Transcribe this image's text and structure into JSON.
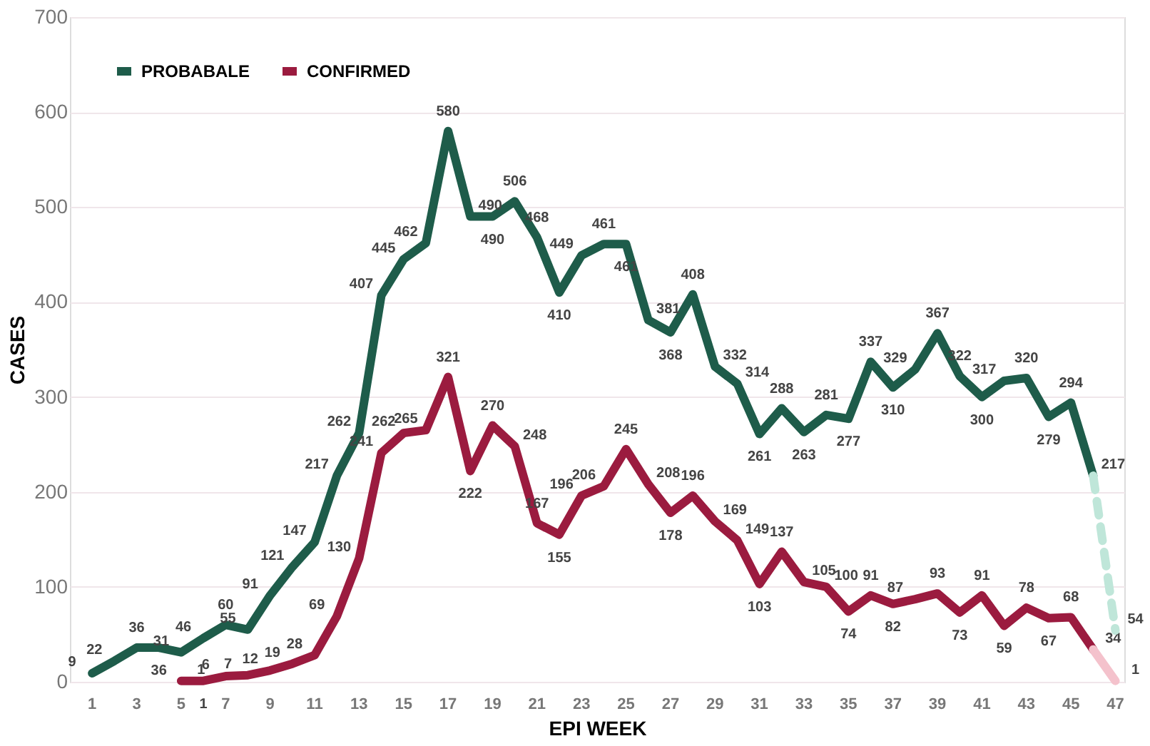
{
  "chart_data": {
    "type": "line",
    "xlabel": "EPI WEEK",
    "ylabel": "CASES",
    "xlim": [
      0,
      47.4
    ],
    "xticks": [
      1,
      3,
      5,
      7,
      9,
      11,
      13,
      15,
      17,
      19,
      21,
      23,
      25,
      27,
      29,
      31,
      33,
      35,
      37,
      39,
      41,
      43,
      45,
      47
    ],
    "ylim": [
      0,
      700
    ],
    "yticks": [
      0,
      100,
      200,
      300,
      400,
      500,
      600,
      700
    ],
    "grid": "y",
    "legend": "top left",
    "marker": "none",
    "data_labels": true,
    "series": [
      {
        "name": "PROBABALE",
        "color": "#1e5c4a",
        "line_style": "solid",
        "x": [
          1,
          2,
          3,
          4,
          5,
          6,
          7,
          8,
          9,
          10,
          11,
          12,
          13,
          14,
          15,
          16,
          17,
          18,
          19,
          20,
          21,
          22,
          23,
          24,
          25,
          26,
          27,
          28,
          29,
          30,
          31,
          32,
          33,
          34,
          35,
          36,
          37,
          38,
          39,
          40,
          41,
          42,
          43,
          44,
          45,
          46
        ],
        "values": [
          9,
          22,
          36,
          36,
          31,
          46,
          60,
          55,
          91,
          121,
          147,
          217,
          262,
          407,
          445,
          462,
          580,
          490,
          490,
          506,
          468,
          410,
          449,
          461,
          461,
          381,
          368,
          408,
          332,
          314,
          261,
          288,
          263,
          281,
          277,
          337,
          310,
          329,
          367,
          322,
          300,
          317,
          320,
          279,
          294,
          217
        ]
      },
      {
        "name": "CONFIRMED",
        "color": "#9b1b3f",
        "line_style": "solid",
        "x": [
          5,
          6,
          7,
          8,
          9,
          10,
          11,
          12,
          13,
          14,
          15,
          16,
          17,
          18,
          19,
          20,
          21,
          22,
          23,
          24,
          25,
          26,
          27,
          28,
          29,
          30,
          31,
          32,
          33,
          34,
          35,
          36,
          37,
          38,
          39,
          40,
          41,
          42,
          43,
          44,
          45,
          46
        ],
        "values": [
          1,
          1,
          6,
          7,
          12,
          19,
          28,
          69,
          130,
          241,
          262,
          265,
          321,
          222,
          270,
          248,
          167,
          155,
          196,
          206,
          245,
          208,
          178,
          196,
          169,
          149,
          103,
          137,
          105,
          100,
          74,
          91,
          82,
          87,
          93,
          73,
          91,
          59,
          78,
          67,
          68,
          34
        ]
      },
      {
        "color": "#bfe6d9",
        "line_style": "dashed",
        "x": [
          46,
          47
        ],
        "values": [
          217,
          54
        ],
        "value_labels": [
          null,
          "54"
        ]
      },
      {
        "color": "#f4c2cc",
        "line_style": "solid",
        "x": [
          46,
          47
        ],
        "values": [
          34,
          1
        ],
        "value_labels": [
          null,
          "1"
        ]
      }
    ]
  }
}
